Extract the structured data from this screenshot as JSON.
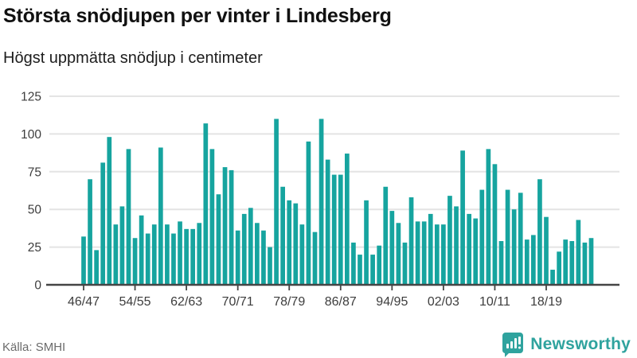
{
  "header": {
    "title": "Största snödjupen per vinter i Lindesberg",
    "subtitle": "Högst uppmätta snödjup i centimeter"
  },
  "footer": {
    "source": "Källa: SMHI",
    "brand": "Newsworthy"
  },
  "colors": {
    "bar": "#16a49f",
    "axis": "#454545",
    "grid": "#e4e4e4",
    "tick_label": "#3d3d3d",
    "brand_teal": "#2fa39e",
    "source_gray": "#6b6b6b"
  },
  "chart_data": {
    "type": "bar",
    "title": "Största snödjupen per vinter i Lindesberg",
    "subtitle": "Högst uppmätta snödjup i centimeter",
    "unit": "cm",
    "xlabel": "",
    "ylabel": "",
    "ylim": [
      0,
      125
    ],
    "y_ticks": [
      0,
      25,
      50,
      75,
      100,
      125
    ],
    "grid": true,
    "legend": false,
    "x_tick_labels": [
      "46/47",
      "54/55",
      "62/63",
      "70/71",
      "78/79",
      "86/87",
      "94/95",
      "02/03",
      "10/11",
      "18/19"
    ],
    "x_tick_indices": [
      0,
      8,
      16,
      24,
      32,
      40,
      48,
      56,
      64,
      72
    ],
    "categories": [
      "46/47",
      "47/48",
      "48/49",
      "49/50",
      "50/51",
      "51/52",
      "52/53",
      "53/54",
      "54/55",
      "55/56",
      "56/57",
      "57/58",
      "58/59",
      "59/60",
      "60/61",
      "61/62",
      "62/63",
      "63/64",
      "64/65",
      "65/66",
      "66/67",
      "67/68",
      "68/69",
      "69/70",
      "70/71",
      "71/72",
      "72/73",
      "73/74",
      "74/75",
      "75/76",
      "76/77",
      "77/78",
      "78/79",
      "79/80",
      "80/81",
      "81/82",
      "82/83",
      "83/84",
      "84/85",
      "85/86",
      "86/87",
      "87/88",
      "88/89",
      "89/90",
      "90/91",
      "91/92",
      "92/93",
      "93/94",
      "94/95",
      "95/96",
      "96/97",
      "97/98",
      "98/99",
      "99/00",
      "00/01",
      "01/02",
      "02/03",
      "03/04",
      "04/05",
      "05/06",
      "06/07",
      "07/08",
      "08/09",
      "09/10",
      "10/11",
      "11/12",
      "12/13",
      "13/14",
      "14/15",
      "15/16",
      "16/17",
      "17/18",
      "18/19",
      "19/20",
      "20/21",
      "21/22",
      "22/23",
      "23/24",
      "24/25",
      "25/26"
    ],
    "values": [
      32,
      70,
      23,
      81,
      98,
      40,
      52,
      90,
      31,
      46,
      34,
      40,
      91,
      40,
      34,
      42,
      37,
      37,
      41,
      107,
      90,
      60,
      78,
      76,
      36,
      47,
      51,
      41,
      36,
      25,
      110,
      65,
      56,
      54,
      40,
      95,
      35,
      110,
      83,
      73,
      73,
      87,
      28,
      20,
      56,
      20,
      26,
      65,
      49,
      41,
      28,
      58,
      42,
      42,
      47,
      40,
      40,
      59,
      52,
      89,
      47,
      44,
      63,
      90,
      80,
      29,
      63,
      50,
      61,
      30,
      33,
      70,
      45,
      10,
      22,
      30,
      29,
      43,
      28,
      31
    ]
  }
}
